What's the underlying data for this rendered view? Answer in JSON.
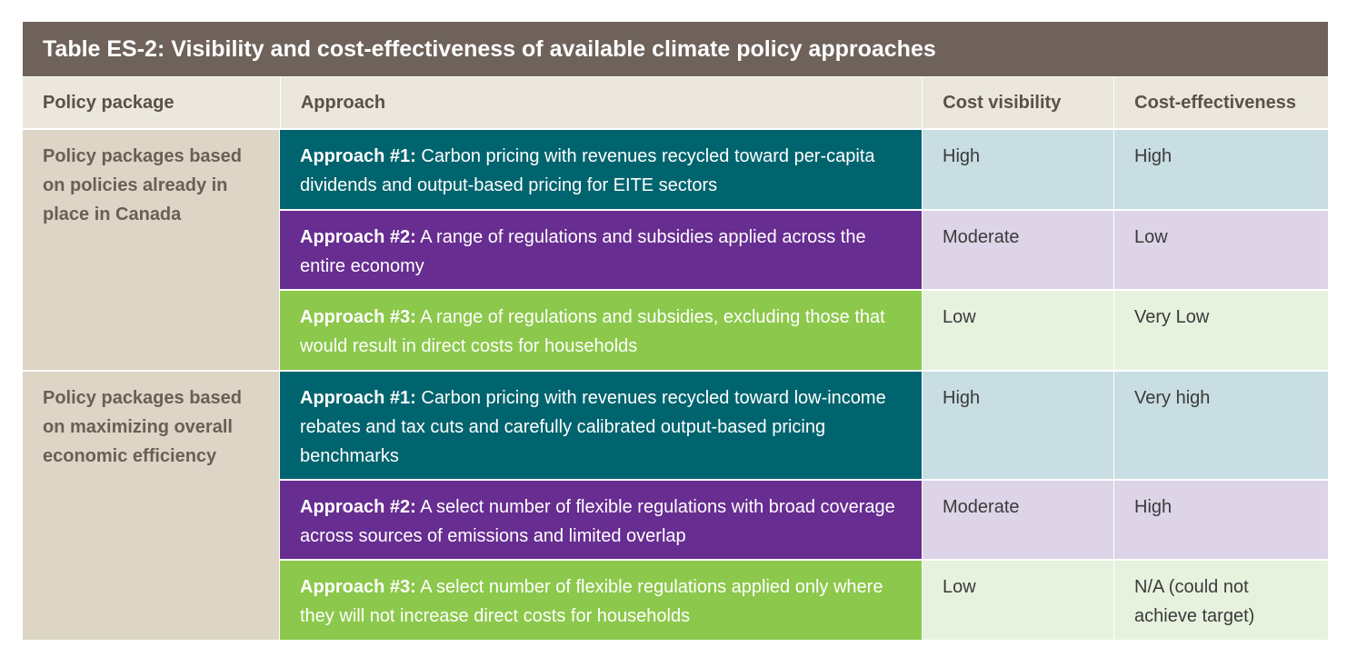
{
  "title": "Table ES-2: Visibility and cost-effectiveness of available climate policy approaches",
  "headers": {
    "policy_package": "Policy package",
    "approach": "Approach",
    "cost_visibility": "Cost visibility",
    "cost_effectiveness": "Cost-effectiveness"
  },
  "colors": {
    "title_bg": "#6e625a",
    "header_bg": "#ebe7dd",
    "package_bg": "#ddd5c5",
    "approach1_bg": "#00646e",
    "approach1_light": "#c8dee2",
    "approach2_bg": "#672d91",
    "approach2_light": "#ddd4e8",
    "approach3_bg": "#8cc84b",
    "approach3_light": "#e7f2de"
  },
  "groups": [
    {
      "package": "Policy packages based on policies already in place in Canada",
      "rows": [
        {
          "label": "Approach #1:",
          "text": " Carbon pricing with revenues recycled toward per-capita dividends and output-based pricing for EITE sectors",
          "visibility": "High",
          "effectiveness": "High"
        },
        {
          "label": "Approach #2:",
          "text": " A range of regulations and subsidies applied across the entire economy",
          "visibility": "Moderate",
          "effectiveness": "Low"
        },
        {
          "label": "Approach #3:",
          "text": " A range of regulations and subsidies, excluding those that would result in direct costs for households",
          "visibility": "Low",
          "effectiveness": "Very Low"
        }
      ]
    },
    {
      "package": "Policy packages based on maximizing overall economic efficiency",
      "rows": [
        {
          "label": "Approach #1:",
          "text": " Carbon pricing with revenues recycled toward low-income rebates and tax cuts and carefully calibrated output-based pricing benchmarks",
          "visibility": "High",
          "effectiveness": "Very high"
        },
        {
          "label": "Approach #2:",
          "text": " A select number of flexible regulations with broad coverage across sources of emissions and limited overlap",
          "visibility": "Moderate",
          "effectiveness": "High"
        },
        {
          "label": "Approach #3:",
          "text": " A select number of flexible regulations applied only where they will not increase direct costs for households",
          "visibility": "Low",
          "effectiveness": "N/A (could not achieve target)"
        }
      ]
    }
  ]
}
